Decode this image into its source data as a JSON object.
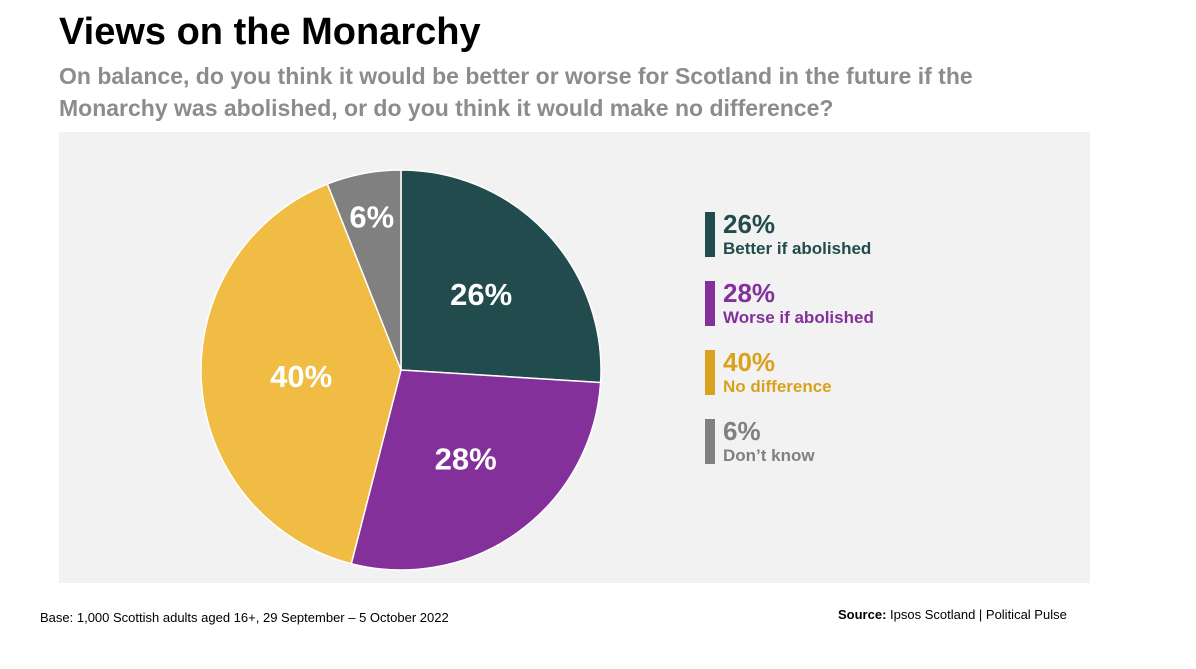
{
  "chart_data": {
    "type": "pie",
    "title": "Views on the Monarchy",
    "subtitle": "On balance, do you think it would be better or worse for Scotland in the future if the Monarchy was abolished, or do you think it would make no difference?",
    "slices": [
      {
        "key": "better",
        "value": 26,
        "label": "26%",
        "category": "Better if abolished",
        "color": "#214b4c"
      },
      {
        "key": "worse",
        "value": 28,
        "label": "28%",
        "category": "Worse if abolished",
        "color": "#84309b"
      },
      {
        "key": "nodiff",
        "value": 40,
        "label": "40%",
        "category": "No difference",
        "color": "#f0bc44"
      },
      {
        "key": "dontknow",
        "value": 6,
        "label": "6%",
        "category": "Don’t know",
        "color": "#808080"
      }
    ],
    "legend_colors": {
      "better": "#214b4c",
      "worse": "#84309b",
      "nodiff": "#d9a21e",
      "dontknow": "#808080"
    },
    "legend_position": "right"
  },
  "footer": {
    "base": "Base: 1,000 Scottish adults aged 16+, 29 September – 5 October 2022",
    "source_label": "Source:",
    "source_text": " Ipsos Scotland | Political Pulse"
  }
}
